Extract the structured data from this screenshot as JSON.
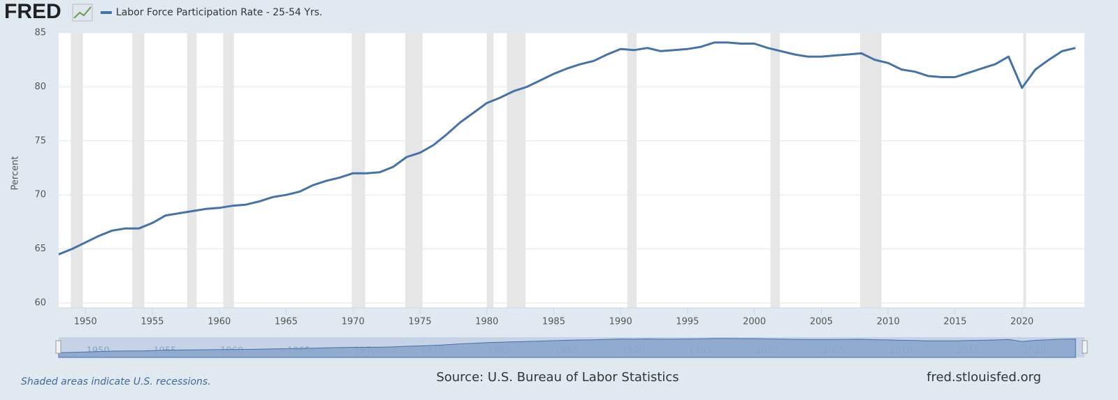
{
  "chart_data": {
    "type": "line",
    "logo": "FRED",
    "y_label": "Percent",
    "note": "Shaded areas indicate U.S. recessions.",
    "source": "Source: U.S. Bureau of Labor Statistics",
    "site": "fred.stlouisfed.org",
    "x": [
      1948,
      1949,
      1950,
      1951,
      1952,
      1953,
      1954,
      1955,
      1956,
      1957,
      1958,
      1959,
      1960,
      1961,
      1962,
      1963,
      1964,
      1965,
      1966,
      1967,
      1968,
      1969,
      1970,
      1971,
      1972,
      1973,
      1974,
      1975,
      1976,
      1977,
      1978,
      1979,
      1980,
      1981,
      1982,
      1983,
      1984,
      1985,
      1986,
      1987,
      1988,
      1989,
      1990,
      1991,
      1992,
      1993,
      1994,
      1995,
      1996,
      1997,
      1998,
      1999,
      2000,
      2001,
      2002,
      2003,
      2004,
      2005,
      2006,
      2007,
      2008,
      2009,
      2010,
      2011,
      2012,
      2013,
      2014,
      2015,
      2016,
      2017,
      2018,
      2019,
      2020,
      2021,
      2022,
      2023,
      2024
    ],
    "series": [
      {
        "name": "Labor Force Participation Rate - 25-54 Yrs.",
        "color": "#4572a7",
        "values": [
          64.5,
          65.0,
          65.6,
          66.2,
          66.7,
          66.9,
          66.9,
          67.4,
          68.1,
          68.3,
          68.5,
          68.7,
          68.8,
          69.0,
          69.1,
          69.4,
          69.8,
          70.0,
          70.3,
          70.9,
          71.3,
          71.6,
          72.0,
          72.0,
          72.1,
          72.6,
          73.5,
          73.9,
          74.6,
          75.6,
          76.7,
          77.6,
          78.5,
          79.0,
          79.6,
          80.0,
          80.6,
          81.2,
          81.7,
          82.1,
          82.4,
          83.0,
          83.5,
          83.4,
          83.6,
          83.3,
          83.4,
          83.5,
          83.7,
          84.1,
          84.1,
          84.0,
          84.0,
          83.6,
          83.3,
          83.0,
          82.8,
          82.8,
          82.9,
          83.0,
          83.1,
          82.5,
          82.2,
          81.6,
          81.4,
          81.0,
          80.9,
          80.9,
          81.3,
          81.7,
          82.1,
          82.8,
          79.9,
          81.6,
          82.5,
          83.3,
          83.6
        ]
      }
    ],
    "recessions": [
      [
        1948.9,
        1949.8
      ],
      [
        1953.5,
        1954.4
      ],
      [
        1957.6,
        1958.3
      ],
      [
        1960.3,
        1961.1
      ],
      [
        1969.9,
        1970.9
      ],
      [
        1973.9,
        1975.2
      ],
      [
        1980.0,
        1980.5
      ],
      [
        1981.5,
        1982.9
      ],
      [
        1990.5,
        1991.2
      ],
      [
        2001.2,
        2001.9
      ],
      [
        2007.9,
        2009.5
      ],
      [
        2020.1,
        2020.3
      ]
    ],
    "recession_color": "#e6e6e6",
    "xlim": [
      1948,
      2024.67
    ],
    "xticks": [
      1950,
      1955,
      1960,
      1965,
      1970,
      1975,
      1980,
      1985,
      1990,
      1995,
      2000,
      2005,
      2010,
      2015,
      2020
    ],
    "ylim": [
      60,
      85
    ],
    "yticks": [
      60,
      65,
      70,
      75,
      80,
      85
    ],
    "grid": true
  }
}
